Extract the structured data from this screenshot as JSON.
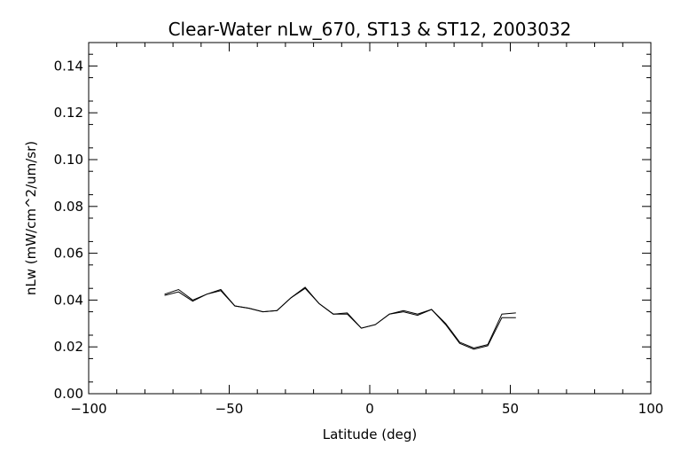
{
  "chart_data": {
    "type": "line",
    "title": "Clear-Water nLw_670, ST13 & ST12, 2003032",
    "xlabel": "Latitude (deg)",
    "ylabel": "nLw (mW/cm^2/um/sr)",
    "xlim": [
      -100,
      100
    ],
    "ylim": [
      0.0,
      0.15
    ],
    "x_ticks": [
      -100,
      -50,
      0,
      50,
      100
    ],
    "x_tick_labels": [
      "−100",
      "−50",
      "0",
      "50",
      "100"
    ],
    "y_ticks": [
      0.0,
      0.02,
      0.04,
      0.06,
      0.08,
      0.1,
      0.12,
      0.14
    ],
    "y_tick_labels": [
      "0.00",
      "0.02",
      "0.04",
      "0.06",
      "0.08",
      "0.10",
      "0.12",
      "0.14"
    ],
    "grid": false,
    "line_color": "#000000",
    "series": [
      {
        "x": [
          -73,
          -68,
          -63,
          -58,
          -53,
          -48,
          -43,
          -38,
          -33,
          -28,
          -23,
          -18,
          -13,
          -8,
          -3,
          2,
          7,
          12,
          17,
          22,
          27,
          32,
          37,
          42,
          47,
          52
        ],
        "y": [
          0.0425,
          0.0445,
          0.04,
          0.0425,
          0.0445,
          0.0375,
          0.0365,
          0.035,
          0.0355,
          0.041,
          0.0455,
          0.0385,
          0.034,
          0.0345,
          0.028,
          0.0295,
          0.034,
          0.0355,
          0.034,
          0.036,
          0.03,
          0.022,
          0.0195,
          0.021,
          0.034,
          0.0345
        ]
      },
      {
        "x": [
          -73,
          -68,
          -63,
          -58,
          -53,
          -48,
          -43,
          -38,
          -33,
          -28,
          -23,
          -18,
          -13,
          -8,
          -3,
          2,
          7,
          12,
          17,
          22,
          27,
          32,
          37,
          42,
          47,
          52
        ],
        "y": [
          0.042,
          0.0435,
          0.0395,
          0.0425,
          0.044,
          0.0375,
          0.0365,
          0.035,
          0.0355,
          0.041,
          0.045,
          0.0385,
          0.034,
          0.034,
          0.028,
          0.0295,
          0.034,
          0.035,
          0.0335,
          0.036,
          0.0295,
          0.0215,
          0.019,
          0.0205,
          0.0325,
          0.0325
        ]
      }
    ]
  }
}
